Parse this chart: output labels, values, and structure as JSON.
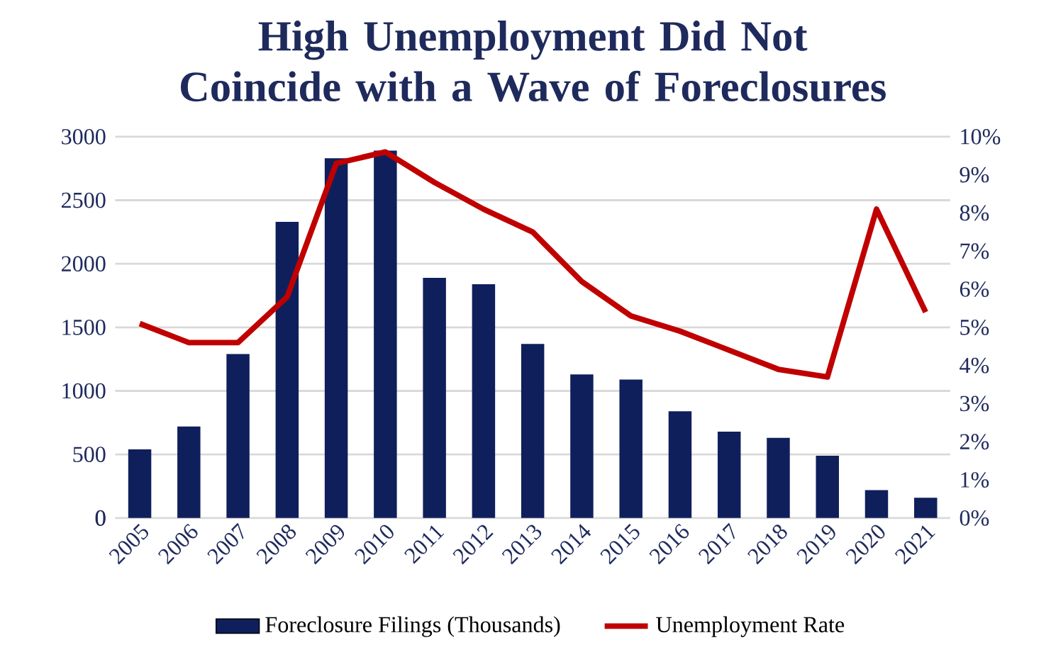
{
  "chart_data": {
    "type": "bar",
    "title": "High Unemployment Did Not Coincide with a Wave of Foreclosures",
    "categories": [
      "2005",
      "2006",
      "2007",
      "2008",
      "2009",
      "2010",
      "2011",
      "2012",
      "2013",
      "2014",
      "2015",
      "2016",
      "2017",
      "2018",
      "2019",
      "2020",
      "2021"
    ],
    "series": [
      {
        "name": "Foreclosure Filings (Thousands)",
        "color": "#0f1f5c",
        "values": [
          540,
          720,
          1290,
          2330,
          2830,
          2890,
          1890,
          1840,
          1370,
          1130,
          1090,
          840,
          680,
          630,
          490,
          220,
          160
        ]
      },
      {
        "name": "Unemployment Rate",
        "type": "line",
        "axis": "y2",
        "color": "#c00000",
        "values": [
          5.1,
          4.6,
          4.6,
          5.8,
          9.3,
          9.6,
          8.8,
          8.1,
          7.5,
          6.2,
          5.3,
          4.9,
          4.4,
          3.9,
          3.7,
          8.1,
          5.4
        ]
      }
    ],
    "ylim": [
      0,
      3000
    ],
    "yticks": [
      0,
      500,
      1000,
      1500,
      2000,
      2500,
      3000
    ],
    "y2lim": [
      0,
      10
    ],
    "y2ticks": [
      {
        "value": 0,
        "label": "0%"
      },
      {
        "value": 1,
        "label": "1%"
      },
      {
        "value": 2,
        "label": "2%"
      },
      {
        "value": 3,
        "label": "3%"
      },
      {
        "value": 4,
        "label": "4%"
      },
      {
        "value": 5,
        "label": "5%"
      },
      {
        "value": 6,
        "label": "6%"
      },
      {
        "value": 7,
        "label": "7%"
      },
      {
        "value": 8,
        "label": "8%"
      },
      {
        "value": 9,
        "label": "9%"
      },
      {
        "value": 10,
        "label": "10%"
      }
    ],
    "grid": "y",
    "legend": "bottom",
    "marker": "none"
  }
}
